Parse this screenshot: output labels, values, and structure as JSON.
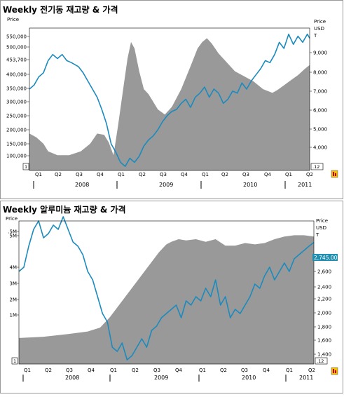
{
  "charts": [
    {
      "title": "Weekly 전기동 재고량 & 가격",
      "left_axis_label": "Price",
      "right_axis_label_1": "Price",
      "right_axis_label_2": "USD",
      "right_axis_label_3": "T",
      "left_ticks": [
        "550,000",
        "500,000",
        "453,700",
        "400,000",
        "350,000",
        "300,000",
        "250,000",
        "200,000",
        "150,000",
        "100,000"
      ],
      "right_ticks": [
        "9,000",
        "8,000",
        "7,000",
        "6,000",
        "5,000",
        "4,000"
      ],
      "flag_left": "1",
      "flag_right": ".12",
      "quarters": [
        "Q1",
        "Q2",
        "Q3",
        "Q4",
        "Q1",
        "Q2",
        "Q3",
        "Q4",
        "Q1",
        "Q2",
        "Q3",
        "Q4",
        "Q1",
        "Q2"
      ],
      "years": [
        "2008",
        "2009",
        "2010",
        "2011"
      ]
    },
    {
      "title": "Weekly 알루미늄 재고량 & 가격",
      "left_axis_label": "Price",
      "right_axis_label_1": "Price",
      "right_axis_label_2": "USD",
      "right_axis_label_3": "T",
      "left_ticks": [
        ".5M",
        "5M",
        "4M",
        "3M",
        "2M",
        "1M"
      ],
      "right_ticks": [
        "2,800",
        "2,600",
        "2,400",
        "2,200",
        "2,000",
        "1,800",
        "1,600",
        "1,400"
      ],
      "price_label": "2,745.00",
      "flag_left": "1",
      "flag_right": ".12",
      "quarters": [
        "Q1",
        "Q2",
        "Q3",
        "Q4",
        "Q1",
        "Q2",
        "Q3",
        "Q4",
        "Q1",
        "Q2",
        "Q3",
        "Q4",
        "Q1",
        "Q2"
      ],
      "years": [
        "2008",
        "2009",
        "2010",
        "2011"
      ]
    }
  ],
  "chart_data": [
    {
      "type": "area",
      "title": "Weekly 전기동 재고량 & 가격",
      "x_periods": [
        "2008 Q1",
        "2008 Q2",
        "2008 Q3",
        "2008 Q4",
        "2009 Q1",
        "2009 Q2",
        "2009 Q3",
        "2009 Q4",
        "2010 Q1",
        "2010 Q2",
        "2010 Q3",
        "2010 Q4",
        "2011 Q1",
        "2011 Q2"
      ],
      "y_left_range": [
        40000,
        600000
      ],
      "y_right_range": [
        3000,
        10000
      ],
      "series": [
        {
          "name": "재고량",
          "axis": "left",
          "values": [
            [
              0,
              185000
            ],
            [
              3,
              170000
            ],
            [
              6,
              145000
            ],
            [
              8,
              115000
            ],
            [
              12,
              100000
            ],
            [
              17,
              100000
            ],
            [
              22,
              115000
            ],
            [
              26,
              145000
            ],
            [
              29,
              185000
            ],
            [
              32,
              180000
            ],
            [
              34,
              150000
            ],
            [
              36,
              100000
            ],
            [
              38,
              220000
            ],
            [
              40,
              350000
            ],
            [
              42,
              480000
            ],
            [
              43.5,
              545000
            ],
            [
              45,
              520000
            ],
            [
              47,
              430000
            ],
            [
              49,
              360000
            ],
            [
              51,
              340000
            ],
            [
              53,
              310000
            ],
            [
              55,
              280000
            ],
            [
              58,
              260000
            ],
            [
              61,
              290000
            ],
            [
              65,
              360000
            ],
            [
              69,
              450000
            ],
            [
              72,
              520000
            ],
            [
              74,
              545000
            ],
            [
              76,
              560000
            ],
            [
              78,
              540000
            ],
            [
              81,
              500000
            ],
            [
              84,
              470000
            ],
            [
              88,
              430000
            ],
            [
              92,
              410000
            ],
            [
              96,
              390000
            ],
            [
              100,
              360000
            ],
            [
              104,
              345000
            ],
            [
              106,
              355000
            ],
            [
              109,
              375000
            ],
            [
              112,
              395000
            ],
            [
              115,
              415000
            ],
            [
              118,
              440000
            ],
            [
              120,
              455000
            ]
          ]
        },
        {
          "name": "가격",
          "axis": "right",
          "values": [
            [
              0,
              7000
            ],
            [
              2,
              7200
            ],
            [
              4,
              7600
            ],
            [
              6,
              7800
            ],
            [
              8,
              8400
            ],
            [
              10,
              8700
            ],
            [
              12,
              8500
            ],
            [
              14,
              8700
            ],
            [
              16,
              8400
            ],
            [
              18,
              8300
            ],
            [
              21,
              8100
            ],
            [
              23,
              7800
            ],
            [
              25,
              7400
            ],
            [
              27,
              7000
            ],
            [
              29,
              6600
            ],
            [
              31,
              6000
            ],
            [
              33,
              5300
            ],
            [
              35,
              4300
            ],
            [
              37,
              3900
            ],
            [
              39,
              3400
            ],
            [
              41,
              3200
            ],
            [
              43,
              3600
            ],
            [
              45,
              3400
            ],
            [
              47,
              3700
            ],
            [
              49,
              4200
            ],
            [
              51,
              4500
            ],
            [
              53,
              4700
            ],
            [
              55,
              5000
            ],
            [
              57,
              5400
            ],
            [
              59,
              5700
            ],
            [
              61,
              5900
            ],
            [
              63,
              6000
            ],
            [
              65,
              6300
            ],
            [
              67,
              6500
            ],
            [
              69,
              6100
            ],
            [
              71,
              6600
            ],
            [
              73,
              6800
            ],
            [
              75,
              7100
            ],
            [
              77,
              6600
            ],
            [
              79,
              7000
            ],
            [
              81,
              6800
            ],
            [
              83,
              6300
            ],
            [
              85,
              6500
            ],
            [
              87,
              6900
            ],
            [
              89,
              6800
            ],
            [
              91,
              7300
            ],
            [
              93,
              7000
            ],
            [
              95,
              7400
            ],
            [
              97,
              7700
            ],
            [
              99,
              8000
            ],
            [
              101,
              8400
            ],
            [
              103,
              8300
            ],
            [
              105,
              8700
            ],
            [
              107,
              9300
            ],
            [
              109,
              9000
            ],
            [
              111,
              9700
            ],
            [
              113,
              9200
            ],
            [
              115,
              9600
            ],
            [
              117,
              9300
            ],
            [
              119,
              9700
            ],
            [
              120,
              9500
            ]
          ]
        }
      ]
    },
    {
      "type": "area",
      "title": "Weekly 알루미늄 재고량 & 가격",
      "x_periods": [
        "2008 Q1",
        "2008 Q2",
        "2008 Q3",
        "2008 Q4",
        "2009 Q1",
        "2009 Q2",
        "2009 Q3",
        "2009 Q4",
        "2010 Q1",
        "2010 Q2",
        "2010 Q3",
        "2010 Q4",
        "2011 Q1",
        "2011 Q2"
      ],
      "y_left_range": [
        0,
        5500000
      ],
      "y_right_range": [
        1300,
        3000
      ],
      "series": [
        {
          "name": "재고량",
          "axis": "left",
          "values": [
            [
              0,
              1000000
            ],
            [
              10,
              1050000
            ],
            [
              20,
              1150000
            ],
            [
              28,
              1250000
            ],
            [
              33,
              1400000
            ],
            [
              37,
              1800000
            ],
            [
              41,
              2300000
            ],
            [
              45,
              2800000
            ],
            [
              49,
              3300000
            ],
            [
              53,
              3800000
            ],
            [
              57,
              4300000
            ],
            [
              60,
              4600000
            ],
            [
              62,
              4700000
            ],
            [
              65,
              4800000
            ],
            [
              68,
              4750000
            ],
            [
              72,
              4800000
            ],
            [
              76,
              4700000
            ],
            [
              80,
              4800000
            ],
            [
              84,
              4550000
            ],
            [
              88,
              4550000
            ],
            [
              92,
              4650000
            ],
            [
              96,
              4600000
            ],
            [
              100,
              4650000
            ],
            [
              104,
              4800000
            ],
            [
              108,
              4900000
            ],
            [
              112,
              4950000
            ],
            [
              116,
              4950000
            ],
            [
              120,
              4900000
            ]
          ]
        },
        {
          "name": "가격",
          "axis": "right",
          "values": [
            [
              0,
              2400
            ],
            [
              2,
              2450
            ],
            [
              4,
              2700
            ],
            [
              6,
              2900
            ],
            [
              8,
              3000
            ],
            [
              10,
              2800
            ],
            [
              12,
              2850
            ],
            [
              14,
              2950
            ],
            [
              16,
              2900
            ],
            [
              18,
              3050
            ],
            [
              20,
              2900
            ],
            [
              22,
              2750
            ],
            [
              24,
              2700
            ],
            [
              26,
              2600
            ],
            [
              28,
              2400
            ],
            [
              30,
              2300
            ],
            [
              32,
              2100
            ],
            [
              34,
              1900
            ],
            [
              36,
              1800
            ],
            [
              38,
              1500
            ],
            [
              40,
              1450
            ],
            [
              42,
              1550
            ],
            [
              44,
              1350
            ],
            [
              46,
              1400
            ],
            [
              48,
              1500
            ],
            [
              50,
              1600
            ],
            [
              52,
              1500
            ],
            [
              54,
              1700
            ],
            [
              56,
              1750
            ],
            [
              58,
              1850
            ],
            [
              60,
              1900
            ],
            [
              62,
              1950
            ],
            [
              64,
              2000
            ],
            [
              66,
              1850
            ],
            [
              68,
              2050
            ],
            [
              70,
              2000
            ],
            [
              72,
              2100
            ],
            [
              74,
              2050
            ],
            [
              76,
              2200
            ],
            [
              78,
              2100
            ],
            [
              80,
              2300
            ],
            [
              82,
              2000
            ],
            [
              84,
              2100
            ],
            [
              86,
              1850
            ],
            [
              88,
              1950
            ],
            [
              90,
              1900
            ],
            [
              92,
              2000
            ],
            [
              94,
              2100
            ],
            [
              96,
              2250
            ],
            [
              98,
              2200
            ],
            [
              100,
              2350
            ],
            [
              102,
              2450
            ],
            [
              104,
              2300
            ],
            [
              106,
              2400
            ],
            [
              108,
              2500
            ],
            [
              110,
              2400
            ],
            [
              112,
              2550
            ],
            [
              114,
              2600
            ],
            [
              116,
              2650
            ],
            [
              118,
              2700
            ],
            [
              120,
              2745
            ]
          ]
        }
      ]
    }
  ]
}
